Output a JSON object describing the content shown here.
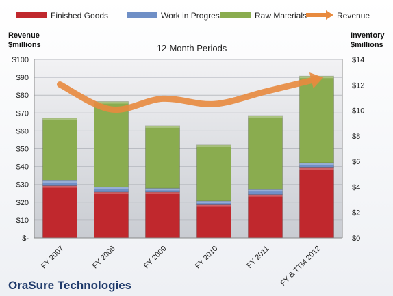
{
  "chart_data": {
    "type": "bar",
    "subtitle": "12-Month Periods",
    "company": "OraSure Technologies",
    "left_axis_title": [
      "Revenue",
      "$millions"
    ],
    "right_axis_title": [
      "Inventory",
      "$millions"
    ],
    "categories": [
      "FY 2007",
      "FY 2008",
      "FY 2009",
      "FY 2010",
      "FY 2011",
      "FY & TTM 2012"
    ],
    "left_ylim": [
      0,
      100
    ],
    "right_ylim": [
      0,
      14
    ],
    "left_ticks": [
      "$-",
      "$10",
      "$20",
      "$30",
      "$40",
      "$50",
      "$60",
      "$70",
      "$80",
      "$90",
      "$100"
    ],
    "right_ticks": [
      "$0",
      "$2",
      "$4",
      "$6",
      "$8",
      "$10",
      "$12",
      "$14"
    ],
    "legend_position": "top",
    "series": [
      {
        "name": "Finished Goods",
        "type": "bar",
        "axis": "right",
        "color": "#c0282d",
        "values": [
          4.1,
          3.6,
          3.6,
          2.6,
          3.4,
          5.5
        ]
      },
      {
        "name": "Work in Progress",
        "type": "bar",
        "axis": "right",
        "color": "#6f8fc6",
        "values": [
          0.4,
          0.4,
          0.3,
          0.3,
          0.4,
          0.4
        ]
      },
      {
        "name": "Raw Materials",
        "type": "bar",
        "axis": "right",
        "color": "#8aac4f",
        "values": [
          4.9,
          6.7,
          4.9,
          4.4,
          5.8,
          6.8
        ]
      },
      {
        "name": "Revenue",
        "type": "line",
        "axis": "left",
        "color": "#e88a3e",
        "values": [
          86,
          72,
          78,
          75,
          82,
          89
        ]
      }
    ]
  }
}
